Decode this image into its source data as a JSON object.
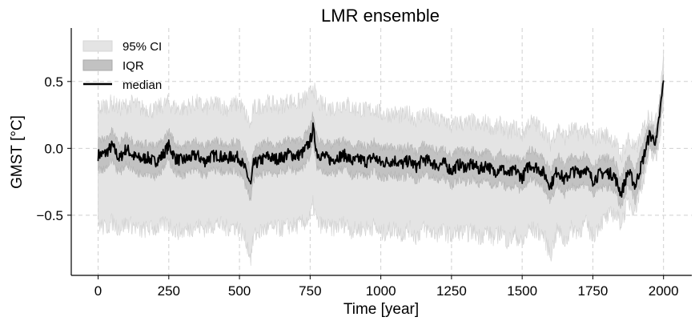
{
  "chart_data": {
    "type": "line",
    "title": "LMR ensemble",
    "xlabel": "Time [year]",
    "ylabel": "GMST [°C]",
    "xlim": [
      -95,
      2100
    ],
    "ylim": [
      -0.95,
      0.9
    ],
    "xticks": [
      0,
      250,
      500,
      750,
      1000,
      1250,
      1500,
      1750,
      2000
    ],
    "xtick_labels": [
      "0",
      "250",
      "500",
      "750",
      "1000",
      "1250",
      "1500",
      "1750",
      "2000"
    ],
    "yticks": [
      -0.5,
      0.0,
      0.5
    ],
    "ytick_labels": [
      "−0.5",
      "0.0",
      "0.5"
    ],
    "grid": true,
    "legend_position": "top-left",
    "legend": [
      {
        "label": "95% CI",
        "kind": "band",
        "color": "#e4e4e4"
      },
      {
        "label": "IQR",
        "kind": "band",
        "color": "#c2c2c2"
      },
      {
        "label": "median",
        "kind": "line",
        "color": "#000000"
      }
    ],
    "series": [
      {
        "name": "median",
        "x": [
          0,
          25,
          50,
          75,
          100,
          125,
          150,
          175,
          200,
          225,
          250,
          275,
          300,
          325,
          350,
          375,
          400,
          425,
          450,
          475,
          500,
          525,
          540,
          550,
          575,
          600,
          625,
          650,
          675,
          700,
          725,
          750,
          760,
          775,
          800,
          825,
          850,
          875,
          900,
          925,
          950,
          975,
          1000,
          1025,
          1050,
          1075,
          1100,
          1125,
          1150,
          1175,
          1200,
          1225,
          1250,
          1275,
          1300,
          1325,
          1350,
          1375,
          1400,
          1425,
          1450,
          1475,
          1500,
          1525,
          1550,
          1575,
          1600,
          1625,
          1650,
          1675,
          1700,
          1725,
          1750,
          1775,
          1800,
          1825,
          1850,
          1875,
          1900,
          1925,
          1950,
          1975,
          1990,
          2000
        ],
        "y": [
          -0.05,
          -0.04,
          0.02,
          -0.08,
          0.0,
          -0.06,
          -0.08,
          -0.07,
          -0.1,
          -0.06,
          0.02,
          -0.08,
          -0.09,
          -0.07,
          -0.05,
          -0.1,
          -0.06,
          -0.05,
          -0.08,
          -0.06,
          -0.07,
          -0.18,
          -0.28,
          -0.12,
          -0.09,
          -0.06,
          -0.08,
          -0.07,
          -0.04,
          -0.06,
          -0.03,
          0.05,
          0.15,
          -0.04,
          -0.06,
          -0.09,
          -0.06,
          -0.05,
          -0.1,
          -0.08,
          -0.1,
          -0.06,
          -0.11,
          -0.1,
          -0.09,
          -0.12,
          -0.09,
          -0.14,
          -0.08,
          -0.1,
          -0.13,
          -0.11,
          -0.17,
          -0.12,
          -0.14,
          -0.12,
          -0.16,
          -0.12,
          -0.18,
          -0.14,
          -0.2,
          -0.16,
          -0.22,
          -0.12,
          -0.14,
          -0.18,
          -0.28,
          -0.16,
          -0.24,
          -0.17,
          -0.18,
          -0.15,
          -0.24,
          -0.19,
          -0.18,
          -0.2,
          -0.34,
          -0.17,
          -0.28,
          -0.1,
          0.1,
          0.05,
          0.32,
          0.5
        ],
        "ci95_lower": [
          -0.56,
          -0.6,
          -0.55,
          -0.6,
          -0.56,
          -0.58,
          -0.62,
          -0.6,
          -0.6,
          -0.58,
          -0.56,
          -0.62,
          -0.62,
          -0.6,
          -0.58,
          -0.6,
          -0.58,
          -0.56,
          -0.6,
          -0.58,
          -0.6,
          -0.7,
          -0.82,
          -0.66,
          -0.62,
          -0.6,
          -0.6,
          -0.6,
          -0.58,
          -0.58,
          -0.56,
          -0.52,
          -0.42,
          -0.56,
          -0.58,
          -0.6,
          -0.58,
          -0.56,
          -0.62,
          -0.6,
          -0.6,
          -0.58,
          -0.64,
          -0.62,
          -0.6,
          -0.64,
          -0.6,
          -0.66,
          -0.6,
          -0.62,
          -0.64,
          -0.62,
          -0.66,
          -0.62,
          -0.64,
          -0.62,
          -0.66,
          -0.62,
          -0.68,
          -0.62,
          -0.7,
          -0.64,
          -0.72,
          -0.6,
          -0.62,
          -0.64,
          -0.8,
          -0.6,
          -0.7,
          -0.6,
          -0.62,
          -0.56,
          -0.66,
          -0.56,
          -0.52,
          -0.48,
          -0.56,
          -0.4,
          -0.46,
          -0.26,
          -0.04,
          -0.08,
          0.16,
          0.36
        ],
        "ci95_upper": [
          0.3,
          0.32,
          0.34,
          0.3,
          0.32,
          0.34,
          0.3,
          0.3,
          0.28,
          0.32,
          0.34,
          0.3,
          0.3,
          0.32,
          0.34,
          0.3,
          0.32,
          0.34,
          0.3,
          0.32,
          0.34,
          0.24,
          0.16,
          0.3,
          0.32,
          0.34,
          0.32,
          0.32,
          0.36,
          0.34,
          0.36,
          0.4,
          0.48,
          0.34,
          0.32,
          0.3,
          0.32,
          0.34,
          0.3,
          0.3,
          0.28,
          0.3,
          0.26,
          0.26,
          0.26,
          0.24,
          0.26,
          0.22,
          0.26,
          0.24,
          0.2,
          0.22,
          0.16,
          0.2,
          0.18,
          0.2,
          0.16,
          0.2,
          0.14,
          0.18,
          0.12,
          0.16,
          0.1,
          0.2,
          0.18,
          0.14,
          0.04,
          0.16,
          0.08,
          0.14,
          0.12,
          0.14,
          0.06,
          0.1,
          0.1,
          0.06,
          -0.06,
          0.08,
          -0.02,
          0.12,
          0.26,
          0.2,
          0.48,
          0.72
        ],
        "iqr_lower": [
          -0.16,
          -0.15,
          -0.09,
          -0.19,
          -0.11,
          -0.17,
          -0.19,
          -0.18,
          -0.21,
          -0.17,
          -0.09,
          -0.19,
          -0.2,
          -0.18,
          -0.16,
          -0.21,
          -0.17,
          -0.16,
          -0.19,
          -0.17,
          -0.18,
          -0.29,
          -0.39,
          -0.23,
          -0.2,
          -0.17,
          -0.19,
          -0.18,
          -0.15,
          -0.17,
          -0.14,
          -0.06,
          0.04,
          -0.15,
          -0.17,
          -0.2,
          -0.17,
          -0.16,
          -0.21,
          -0.19,
          -0.21,
          -0.17,
          -0.22,
          -0.21,
          -0.2,
          -0.23,
          -0.2,
          -0.25,
          -0.19,
          -0.21,
          -0.24,
          -0.22,
          -0.28,
          -0.23,
          -0.25,
          -0.23,
          -0.27,
          -0.23,
          -0.29,
          -0.25,
          -0.31,
          -0.27,
          -0.33,
          -0.23,
          -0.25,
          -0.29,
          -0.39,
          -0.27,
          -0.35,
          -0.28,
          -0.29,
          -0.26,
          -0.35,
          -0.3,
          -0.29,
          -0.31,
          -0.45,
          -0.28,
          -0.39,
          -0.21,
          0.02,
          -0.03,
          0.24,
          0.42
        ],
        "iqr_upper": [
          0.06,
          0.07,
          0.13,
          0.03,
          0.11,
          0.05,
          0.03,
          0.04,
          0.01,
          0.05,
          0.13,
          0.03,
          0.02,
          0.04,
          0.06,
          0.01,
          0.05,
          0.06,
          0.03,
          0.05,
          0.04,
          -0.07,
          -0.17,
          -0.01,
          0.02,
          0.05,
          0.03,
          0.04,
          0.07,
          0.05,
          0.08,
          0.16,
          0.26,
          0.07,
          0.05,
          0.02,
          0.05,
          0.06,
          0.01,
          0.03,
          0.01,
          0.05,
          0.0,
          0.01,
          0.02,
          -0.01,
          0.02,
          -0.03,
          0.03,
          0.01,
          -0.02,
          0.0,
          -0.06,
          -0.01,
          -0.03,
          -0.01,
          -0.05,
          -0.01,
          -0.07,
          -0.03,
          -0.09,
          -0.05,
          -0.11,
          -0.01,
          -0.03,
          -0.07,
          -0.17,
          -0.05,
          -0.13,
          -0.06,
          -0.07,
          -0.04,
          -0.13,
          -0.08,
          -0.07,
          -0.09,
          -0.23,
          -0.06,
          -0.17,
          0.01,
          0.18,
          0.13,
          0.4,
          0.58
        ]
      }
    ],
    "colors": {
      "ci95": "#e4e4e4",
      "iqr": "#c2c2c2",
      "median": "#000000",
      "grid": "#d0d0d0",
      "legend_ci_edge": "#d6d6d6",
      "legend_iqr_edge": "#aaaaaa"
    }
  }
}
